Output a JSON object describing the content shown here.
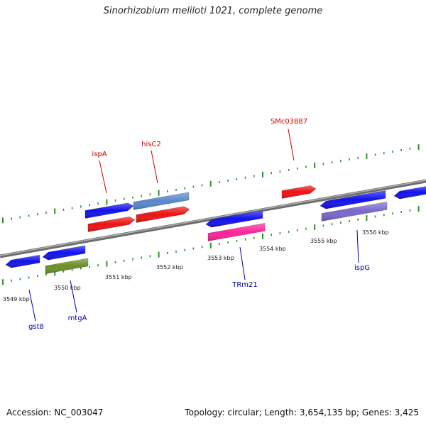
{
  "title": "Sinorhizobium meliloti 1021, complete genome",
  "footer": {
    "accession": "Accession: NC_003047",
    "summary": "Topology: circular; Length: 3,654,135 bp; Genes: 3,425"
  },
  "colors": {
    "background": "#ffffff",
    "backbone": "#8a8a8a",
    "dots": "#2f8f2f",
    "label_red": "#cc0000",
    "label_blue": "#0000aa"
  },
  "scale_labels": [
    "3549 kbp",
    "3550 kbp",
    "3551 kbp",
    "3552 kbp",
    "3553 kbp",
    "3554 kbp",
    "3555 kbp",
    "3556 kbp"
  ],
  "gene_labels": [
    {
      "text": "SMc03887",
      "color": "red"
    },
    {
      "text": "ispA",
      "color": "red"
    },
    {
      "text": "hisC2",
      "color": "red"
    },
    {
      "text": "TRm21",
      "color": "blue"
    },
    {
      "text": "ispG",
      "color": "blue"
    },
    {
      "text": "gst8",
      "color": "blue"
    },
    {
      "text": "mtgA",
      "color": "blue"
    }
  ],
  "features": [
    {
      "track": "forward-outer",
      "color": "#1111ee",
      "direction": "forward"
    },
    {
      "track": "forward-outer",
      "color": "#5588cc",
      "direction": "none"
    },
    {
      "track": "forward-inner",
      "color": "#ee1111",
      "direction": "forward"
    },
    {
      "track": "forward-inner",
      "color": "#ee1111",
      "direction": "forward"
    },
    {
      "track": "forward-inner",
      "color": "#ee1111",
      "direction": "forward"
    },
    {
      "track": "forward-outer",
      "color": "#1111ee",
      "direction": "reverse"
    },
    {
      "track": "forward-outer",
      "color": "#1111ee",
      "direction": "reverse"
    },
    {
      "track": "reverse-inner",
      "color": "#1111ee",
      "direction": "reverse"
    },
    {
      "track": "reverse-inner",
      "color": "#1111ee",
      "direction": "reverse"
    },
    {
      "track": "reverse-inner",
      "color": "#1111ee",
      "direction": "reverse"
    },
    {
      "track": "reverse-outer",
      "color": "#ff2299",
      "direction": "none"
    },
    {
      "track": "reverse-outer",
      "color": "#6b8e23",
      "direction": "none"
    },
    {
      "track": "reverse-outer",
      "color": "#7766cc",
      "direction": "none"
    }
  ]
}
